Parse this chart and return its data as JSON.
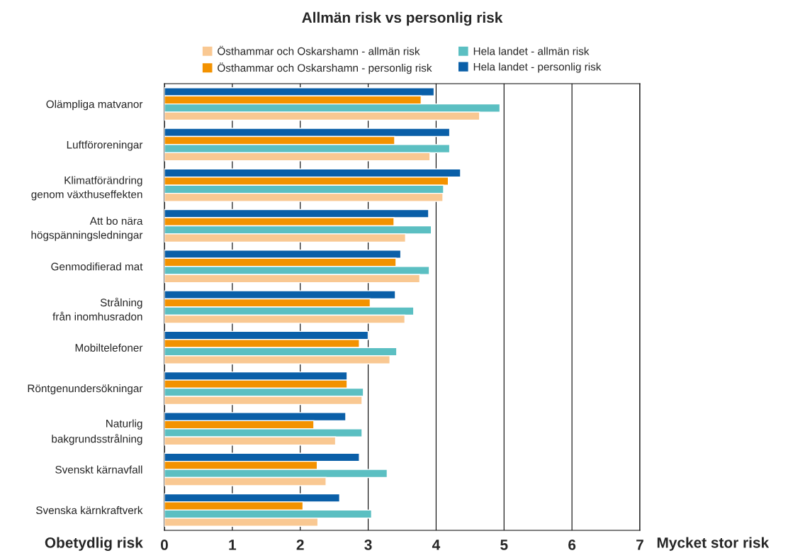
{
  "chart_data": {
    "type": "bar",
    "orientation": "horizontal",
    "title": "Allmän risk vs personlig risk",
    "categories": [
      "Olämpliga matvanor",
      "Luftföroreningar",
      "Klimatförändring\ngenom växthuseffekten",
      "Att bo nära\nhögspänningsledningar",
      "Genmodifierad mat",
      "Strålning\nfrån inomhusradon",
      "Mobiltelefoner",
      "Röntgenundersökningar",
      "Naturlig\nbakgrundsstrålning",
      "Svenskt kärnavfall",
      "Svenska kärnkraftverk"
    ],
    "series": [
      {
        "name": "Hela landet - personlig risk",
        "color": "#0a5fa8",
        "values": [
          3.97,
          4.2,
          4.36,
          3.89,
          3.48,
          3.4,
          3.0,
          2.69,
          2.67,
          2.87,
          2.58
        ]
      },
      {
        "name": "Östhammar och Oskarshamn - personlig risk",
        "color": "#f39200",
        "values": [
          3.78,
          3.39,
          4.18,
          3.38,
          3.41,
          3.03,
          2.87,
          2.69,
          2.2,
          2.25,
          2.04
        ]
      },
      {
        "name": "Hela landet - allmän risk",
        "color": "#5bbfc2",
        "values": [
          4.94,
          4.2,
          4.11,
          3.93,
          3.9,
          3.67,
          3.42,
          2.93,
          2.91,
          3.28,
          3.05
        ]
      },
      {
        "name": "Östhammar och Oskarshamn - allmän risk",
        "color": "#f9c892",
        "values": [
          4.64,
          3.91,
          4.1,
          3.55,
          3.76,
          3.54,
          3.32,
          2.91,
          2.52,
          2.38,
          2.26
        ]
      }
    ],
    "xlim": [
      0,
      7
    ],
    "xticks": [
      0,
      1,
      2,
      3,
      4,
      5,
      6,
      7
    ],
    "grid": "x",
    "legend": "top",
    "annotations": [
      "Obetydlig risk",
      "Mycket stor risk"
    ]
  }
}
